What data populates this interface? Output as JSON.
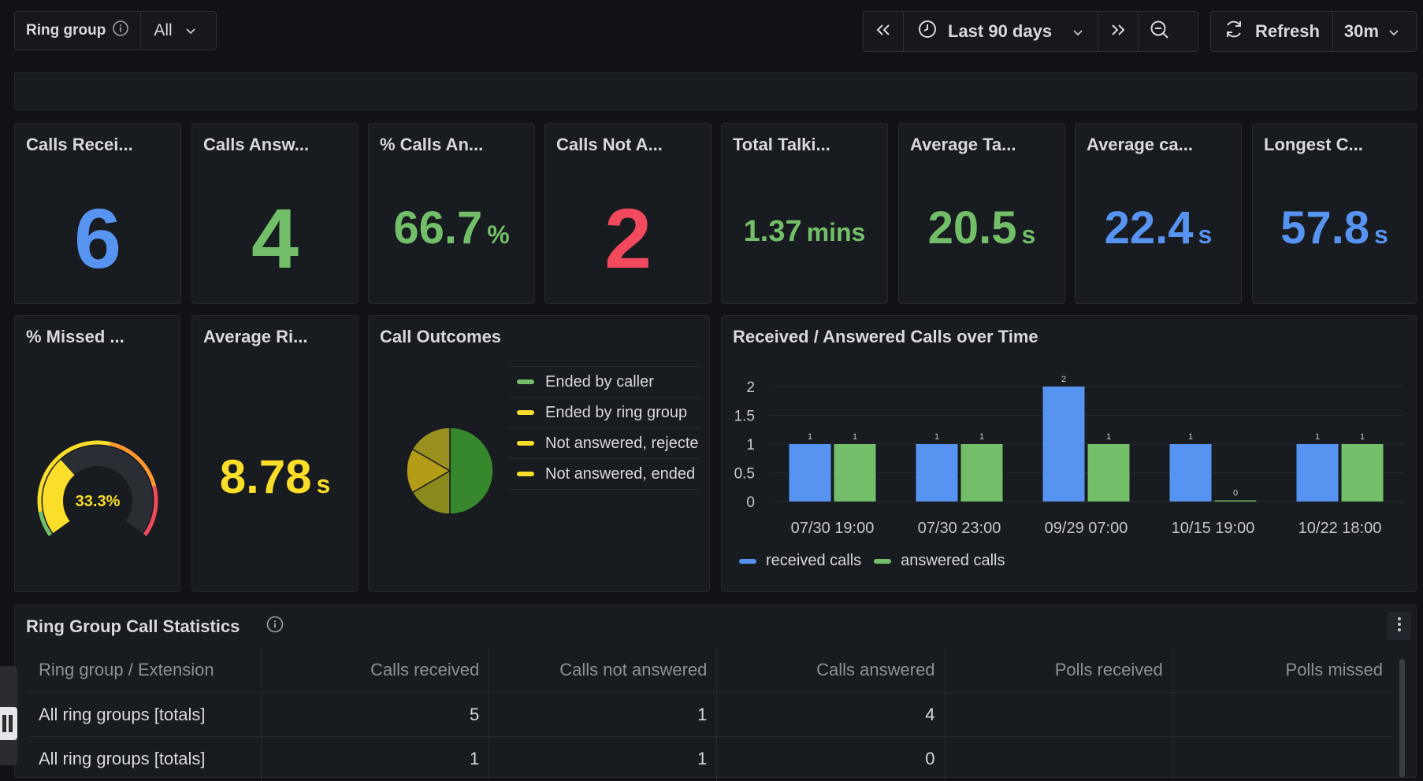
{
  "filter": {
    "label": "Ring group",
    "value": "All"
  },
  "timebar": {
    "range": "Last 90 days",
    "refresh_label": "Refresh",
    "interval": "30m"
  },
  "colors": {
    "blue": "#5794f2",
    "green": "#73bf69",
    "red": "#f2495c",
    "yellow": "#fade2a"
  },
  "stats": [
    {
      "title": "Calls Recei...",
      "value": "6",
      "unit": "",
      "color": "#5794f2"
    },
    {
      "title": "Calls Answ...",
      "value": "4",
      "unit": "",
      "color": "#73bf69"
    },
    {
      "title": "% Calls An...",
      "value": "66.7",
      "unit": "%",
      "color": "#73bf69"
    },
    {
      "title": "Calls Not A...",
      "value": "2",
      "unit": "",
      "color": "#f2495c"
    },
    {
      "title": "Total Talki...",
      "value": "1.37",
      "unit": "mins",
      "color": "#73bf69"
    },
    {
      "title": "Average Ta...",
      "value": "20.5",
      "unit": "s",
      "color": "#73bf69"
    },
    {
      "title": "Average ca...",
      "value": "22.4",
      "unit": "s",
      "color": "#5794f2"
    },
    {
      "title": "Longest C...",
      "value": "57.8",
      "unit": "s",
      "color": "#5794f2"
    }
  ],
  "missed": {
    "title": "% Missed ...",
    "value": "33.3%",
    "fraction": 0.333
  },
  "avg_ring": {
    "title": "Average Ri...",
    "value": "8.78",
    "unit": "s"
  },
  "outcomes": {
    "title": "Call Outcomes",
    "legend": [
      {
        "label": "Ended by caller",
        "color": "#73bf69"
      },
      {
        "label": "Ended by ring group",
        "color": "#fade2a"
      },
      {
        "label": "Not answered, rejecte",
        "color": "#fade2a"
      },
      {
        "label": "Not answered, ended",
        "color": "#fade2a"
      }
    ]
  },
  "bars_panel": {
    "title": "Received / Answered Calls over Time"
  },
  "chart_data": {
    "type": "bar",
    "categories": [
      "07/30 19:00",
      "07/30 23:00",
      "09/29 07:00",
      "10/15 19:00",
      "10/22 18:00"
    ],
    "series": [
      {
        "name": "received calls",
        "values": [
          1,
          1,
          2,
          1,
          1
        ],
        "color": "#5794f2"
      },
      {
        "name": "answered calls",
        "values": [
          1,
          1,
          1,
          0,
          1
        ],
        "color": "#73bf69"
      }
    ],
    "yticks": [
      "0",
      "0.5",
      "1",
      "1.5",
      "2"
    ],
    "ylim": [
      0,
      2
    ],
    "legend": "bottom"
  },
  "table": {
    "title": "Ring Group Call Statistics",
    "columns": [
      "Ring group / Extension",
      "Calls received",
      "Calls not answered",
      "Calls answered",
      "Polls received",
      "Polls missed"
    ],
    "rows": [
      [
        "All ring groups [totals]",
        "5",
        "1",
        "4",
        "",
        ""
      ],
      [
        "All ring groups [totals]",
        "1",
        "1",
        "0",
        "",
        ""
      ]
    ]
  }
}
